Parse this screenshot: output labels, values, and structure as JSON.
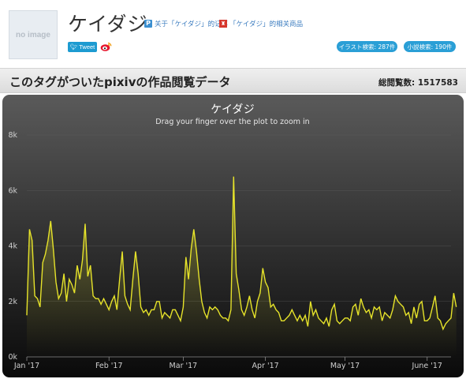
{
  "header": {
    "no_image": "no image",
    "tag": "ケイダジ",
    "article_link": "关于「ケイダジ」的记事",
    "product_link": "「ケイダジ」的相关商品",
    "tweet_label": "Tweet",
    "illust_search": "イラスト検索: 287件",
    "novel_search": "小説検索: 190件"
  },
  "section": {
    "title": "このタグがついたpixivの作品閲覧データ",
    "total_label": "総閲覧数:",
    "total_value": "1517583"
  },
  "colors": {
    "accent": "#2a9fd6",
    "line": "#e6e32a",
    "chart_bg_top": "#5a5a5a",
    "chart_bg_bottom": "#0a0a0a"
  },
  "chart_data": {
    "type": "line",
    "title": "ケイダジ",
    "subtitle": "Drag your finger over the plot to zoom in",
    "x_axis": {
      "type": "date",
      "start": "2017-01-01",
      "tick_labels": [
        "Jan '17",
        "Feb '17",
        "Mar '17",
        "Apr '17",
        "May '17",
        "June '17"
      ],
      "tick_dates": [
        "2017-01-01",
        "2017-02-01",
        "2017-03-01",
        "2017-04-01",
        "2017-05-01",
        "2017-06-01"
      ]
    },
    "y_axis": {
      "tick_labels": [
        "0k",
        "2k",
        "4k",
        "6k",
        "8k"
      ],
      "ylim": [
        0,
        8000
      ]
    },
    "grid": true,
    "legend": "none",
    "series": [
      {
        "values": [
          1500,
          4600,
          4200,
          2200,
          2100,
          1800,
          3400,
          3700,
          4200,
          4900,
          3900,
          2700,
          2100,
          2300,
          3000,
          2000,
          2800,
          2600,
          2300,
          3300,
          2800,
          3500,
          4800,
          2900,
          3300,
          2200,
          2100,
          2100,
          1900,
          2100,
          1900,
          1700,
          2000,
          2200,
          1700,
          2800,
          3800,
          2200,
          1900,
          1700,
          2800,
          3800,
          3000,
          1800,
          1600,
          1700,
          1500,
          1700,
          1700,
          2000,
          2000,
          1400,
          1600,
          1500,
          1400,
          1700,
          1700,
          1500,
          1300,
          1800,
          3600,
          2800,
          3900,
          4600,
          3800,
          2800,
          2000,
          1600,
          1400,
          1800,
          1700,
          1800,
          1700,
          1500,
          1400,
          1400,
          1300,
          1700,
          6500,
          3000,
          2400,
          1700,
          1500,
          1800,
          2200,
          1700,
          1400,
          2000,
          2300,
          3200,
          2700,
          2500,
          1800,
          1900,
          1700,
          1600,
          1300,
          1300,
          1400,
          1500,
          1700,
          1500,
          1300,
          1500,
          1300,
          1500,
          1100,
          2000,
          1500,
          1700,
          1400,
          1300,
          1200,
          1400,
          1100,
          1700,
          1900,
          1300,
          1200,
          1300,
          1400,
          1400,
          1300,
          1800,
          1900,
          1500,
          2100,
          1800,
          1600,
          1700,
          1400,
          1800,
          1700,
          1800,
          1300,
          1600,
          1500,
          1400,
          1700,
          2200,
          2000,
          1900,
          1800,
          1500,
          1600,
          1200,
          1800,
          1400,
          1900,
          2000,
          1300,
          1300,
          1400,
          1800,
          2200,
          1400,
          1300,
          1000,
          1200,
          1300,
          1400,
          2300,
          1800
        ]
      }
    ]
  }
}
